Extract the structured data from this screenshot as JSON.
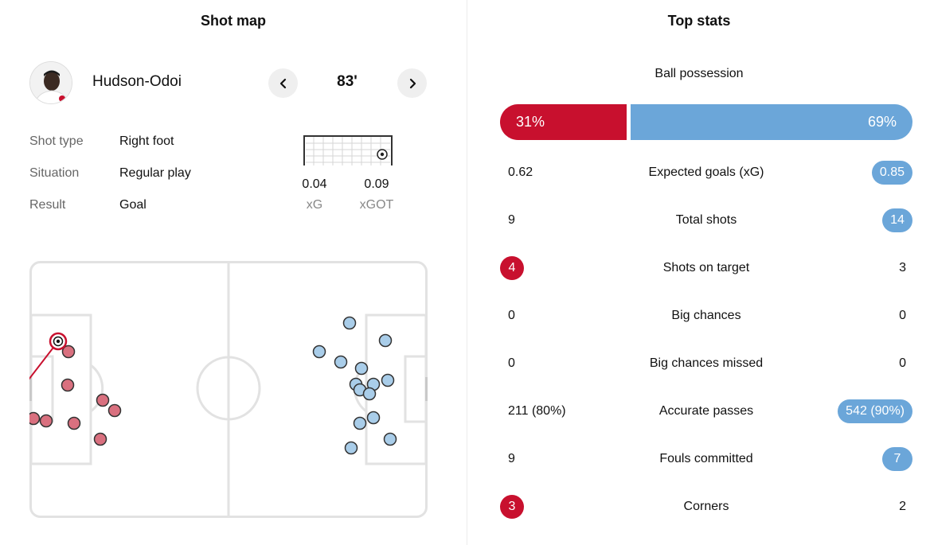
{
  "shot_map": {
    "title": "Shot map",
    "player_name": "Hudson-Odoi",
    "minute": "83'",
    "prev_icon": "chevron-left-icon",
    "next_icon": "chevron-right-icon",
    "info": [
      {
        "label": "Shot type",
        "value": "Right foot"
      },
      {
        "label": "Situation",
        "value": "Regular play"
      },
      {
        "label": "Result",
        "value": "Goal"
      }
    ],
    "xg": {
      "value": "0.04",
      "label": "xG"
    },
    "xgot": {
      "value": "0.09",
      "label": "xGOT"
    },
    "colors": {
      "home": "#d9707f",
      "away": "#a9cde9",
      "highlight": "#c8102e"
    }
  },
  "top_stats": {
    "title": "Top stats",
    "possession": {
      "label": "Ball possession",
      "home": "31%",
      "away": "69%",
      "home_share": 31
    },
    "colors": {
      "home": "#c8102e",
      "away": "#6ba6d9"
    },
    "rows": [
      {
        "label": "Expected goals (xG)",
        "home": "0.62",
        "away": "0.85",
        "highlight": "away"
      },
      {
        "label": "Total shots",
        "home": "9",
        "away": "14",
        "highlight": "away"
      },
      {
        "label": "Shots on target",
        "home": "4",
        "away": "3",
        "highlight": "home"
      },
      {
        "label": "Big chances",
        "home": "0",
        "away": "0",
        "highlight": "none"
      },
      {
        "label": "Big chances missed",
        "home": "0",
        "away": "0",
        "highlight": "none"
      },
      {
        "label": "Accurate passes",
        "home": "211 (80%)",
        "away": "542 (90%)",
        "highlight": "away"
      },
      {
        "label": "Fouls committed",
        "home": "9",
        "away": "7",
        "highlight": "away"
      },
      {
        "label": "Corners",
        "home": "3",
        "away": "2",
        "highlight": "home"
      }
    ]
  }
}
